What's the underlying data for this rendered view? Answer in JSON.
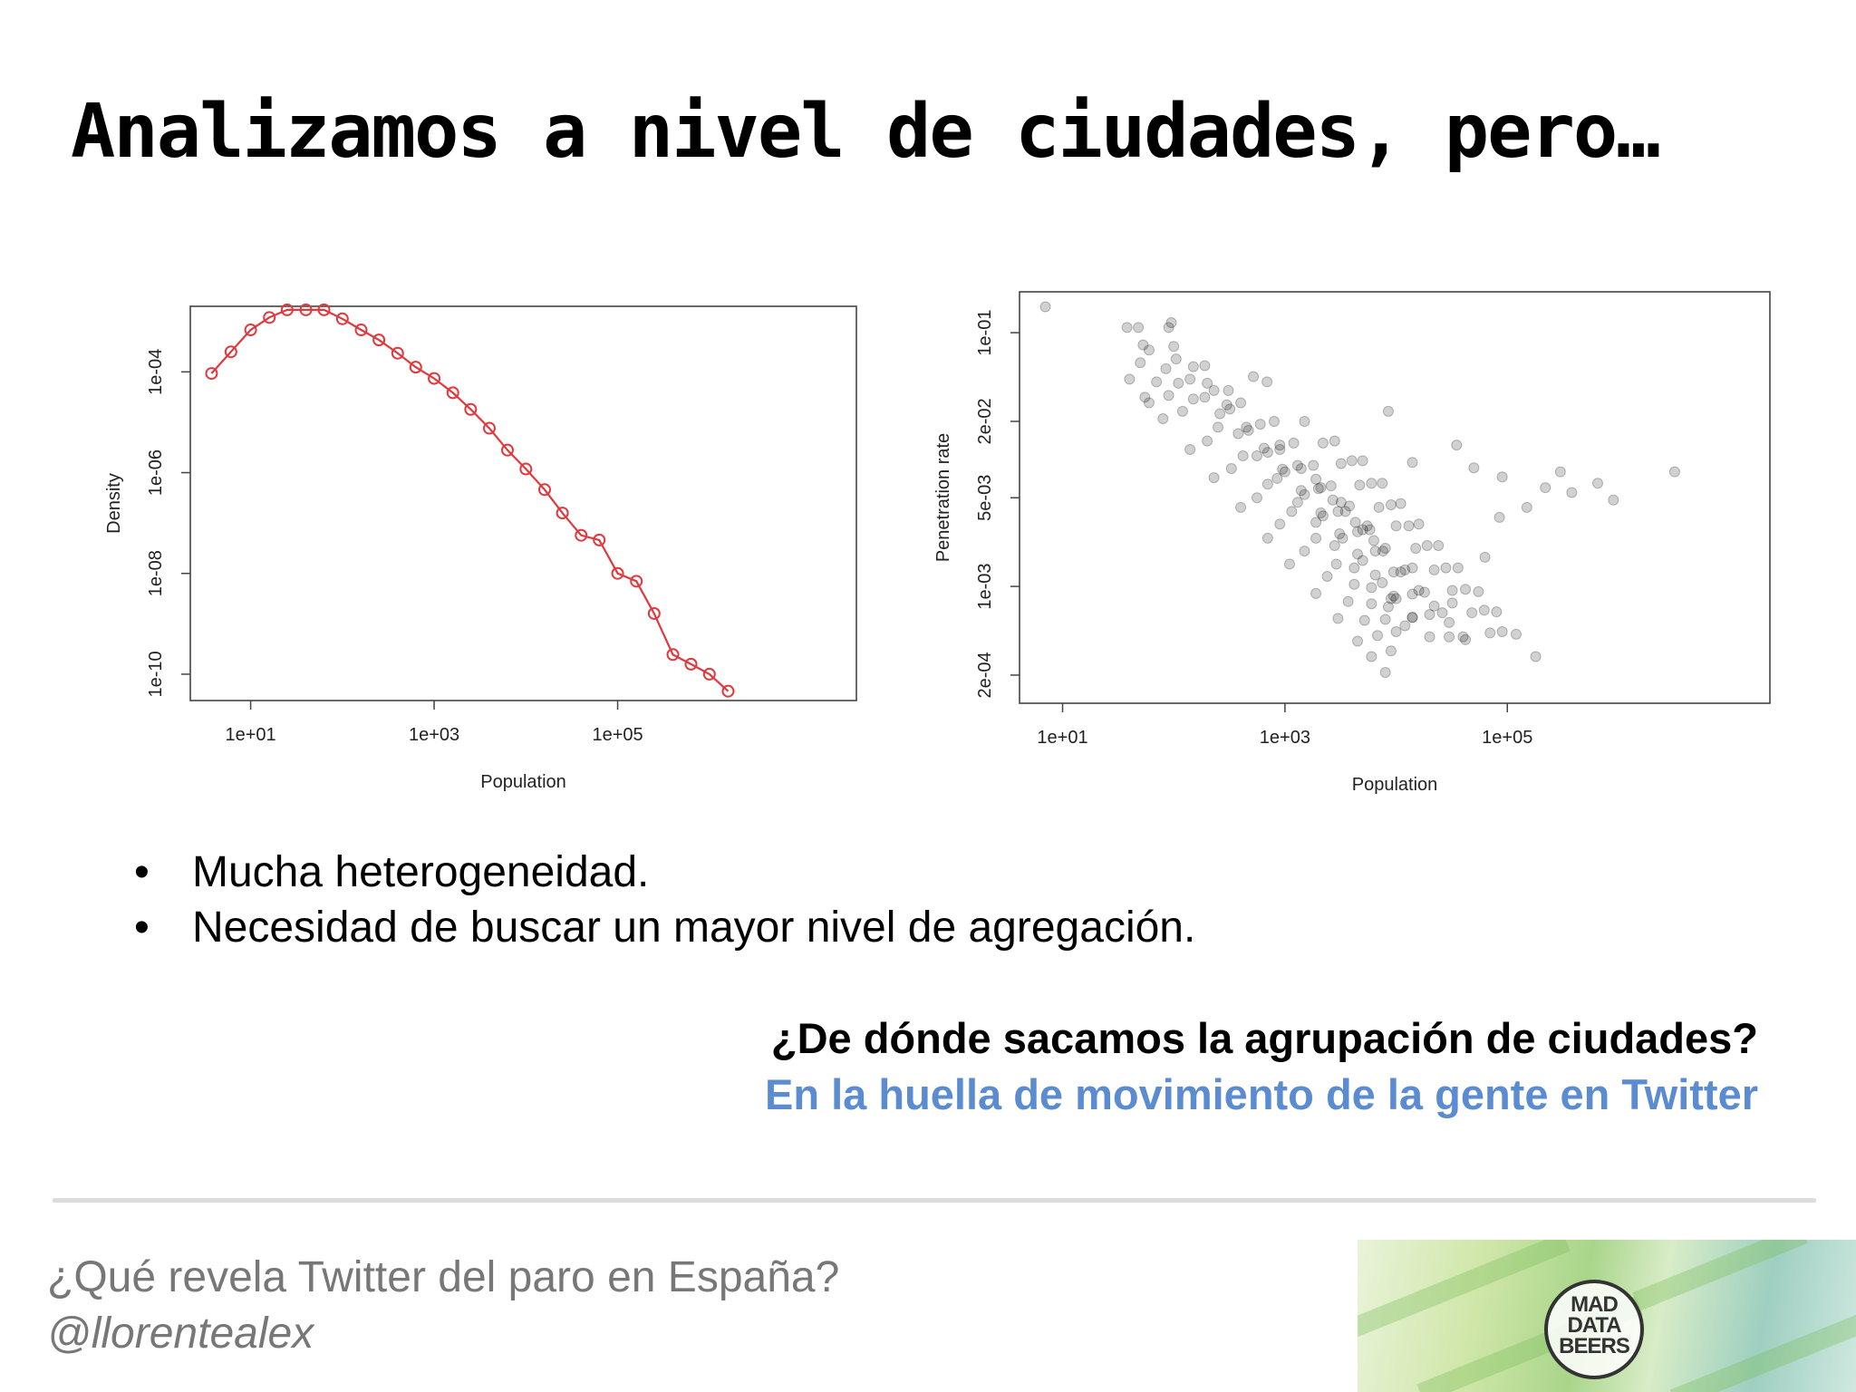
{
  "slide": {
    "title": "Analizamos a nivel de ciudades, pero…",
    "bullets": [
      "Mucha heterogeneidad.",
      "Necesidad de buscar un mayor nivel de agregación."
    ],
    "bullet_glyph": "•",
    "question": "¿De dónde sacamos la agrupación de ciudades?",
    "answer": "En la huella de movimiento de la gente en Twitter",
    "answer_color": "#5b8bd0"
  },
  "footer": {
    "title": "¿Qué revela Twitter del paro en España?",
    "handle": "@llorentealex",
    "logo_lines": [
      "MAD",
      "DATA",
      "BEERS"
    ]
  },
  "chart_data": [
    {
      "type": "line",
      "xlabel": "Population",
      "ylabel": "Density",
      "x_scale": "log10",
      "y_scale": "log10",
      "xticks": [
        {
          "value": 10,
          "label": "1e+01"
        },
        {
          "value": 1000,
          "label": "1e+03"
        },
        {
          "value": 100000,
          "label": "1e+05"
        }
      ],
      "yticks": [
        {
          "value": 1e-10,
          "label": "1e-10"
        },
        {
          "value": 1e-08,
          "label": "1e-08"
        },
        {
          "value": 1e-06,
          "label": "1e-06"
        },
        {
          "value": 0.0001,
          "label": "1e-04"
        }
      ],
      "xlim": [
        2.2,
        40000000
      ],
      "ylim": [
        3e-11,
        0.002
      ],
      "color": "#e0393e",
      "x": [
        3.75,
        6.1,
        10,
        16,
        25,
        40,
        63,
        100,
        160,
        250,
        400,
        630,
        1000,
        1600,
        2500,
        4000,
        6300,
        10000,
        16000,
        25000,
        40000,
        63000,
        100000,
        160000,
        250000,
        400000,
        630000,
        1000000,
        1600000
      ],
      "y": [
        9.3e-05,
        0.00025,
        0.00068,
        0.0012,
        0.0017,
        0.0017,
        0.0017,
        0.00113,
        0.00068,
        0.00043,
        0.000235,
        0.000124,
        7.4e-05,
        3.85e-05,
        1.8e-05,
        7.6e-06,
        2.8e-06,
        1.18e-06,
        4.6e-07,
        1.58e-07,
        5.7e-08,
        4.6e-08,
        1e-08,
        7e-09,
        1.6e-09,
        2.45e-10,
        1.58e-10,
        1e-10,
        4.6e-11
      ]
    },
    {
      "type": "scatter",
      "xlabel": "Population",
      "ylabel": "Penetration rate",
      "x_scale": "log10",
      "y_scale": "log10",
      "xticks": [
        {
          "value": 10,
          "label": "1e+01"
        },
        {
          "value": 1000,
          "label": "1e+03"
        },
        {
          "value": 100000,
          "label": "1e+05"
        }
      ],
      "yticks": [
        {
          "value": 0.0002,
          "label": "2e-04"
        },
        {
          "value": 0.001,
          "label": "1e-03"
        },
        {
          "value": 0.005,
          "label": "5e-03"
        },
        {
          "value": 0.02,
          "label": "2e-02"
        },
        {
          "value": 0.1,
          "label": "1e-01"
        }
      ],
      "xlim": [
        4.1,
        23000000
      ],
      "ylim": [
        0.00012,
        0.21
      ],
      "point_color": "#000000",
      "point_opacity": 0.18,
      "x": [
        7.0,
        38,
        48,
        53,
        90,
        95,
        100,
        105,
        190,
        310,
        520,
        690,
        8500,
        14000,
        35000,
        50000,
        90000,
        300000,
        3200000,
        9000,
        63000,
        40,
        55,
        60,
        80,
        140,
        230,
        400,
        700,
        1100,
        1900,
        3000,
        4500,
        6000,
        8000,
        50,
        70,
        90,
        120,
        200,
        330,
        560,
        900,
        1500,
        2400,
        3700,
        5200,
        6800,
        9000,
        60,
        85,
        110,
        150,
        250,
        420,
        700,
        1150,
        1900,
        2900,
        4200,
        6000,
        8000,
        10000,
        140,
        190,
        260,
        380,
        560,
        850,
        1300,
        1900,
        2800,
        4200,
        6000,
        8500,
        12000,
        150,
        230,
        320,
        470,
        700,
        1000,
        1500,
        2200,
        3300,
        5000,
        7500,
        10000,
        14000,
        200,
        300,
        450,
        650,
        950,
        1400,
        2100,
        3100,
        4500,
        6500,
        9500,
        14000,
        20000,
        400,
        600,
        900,
        1300,
        2000,
        3000,
        4500,
        6500,
        9500,
        14000,
        20000,
        30000,
        800,
        1200,
        1800,
        2600,
        3800,
        5500,
        8000,
        12000,
        18000,
        26000,
        40000,
        1500,
        2200,
        3200,
        4700,
        7000,
        10000,
        15000,
        22000,
        32000,
        48000,
        70000,
        2800,
        4000,
        6000,
        9000,
        13000,
        19000,
        28000,
        42000,
        62000,
        90000,
        5000,
        7500,
        11000,
        16000,
        24000,
        36000,
        55000,
        80000,
        120000,
        180000,
        900,
        1400,
        2100,
        2700,
        3500,
        4300,
        5000,
        6300,
        7600,
        11000,
        16000,
        22000,
        30000,
        42000,
        1900,
        3200,
        5800,
        14000,
        32000,
        85000,
        150000,
        220000,
        380000,
        650000,
        900000
      ],
      "y": [
        0.16,
        0.11,
        0.11,
        0.08,
        0.11,
        0.12,
        0.078,
        0.062,
        0.055,
        0.035,
        0.045,
        0.041,
        0.024,
        0.0095,
        0.013,
        0.0086,
        0.0073,
        0.008,
        0.008,
        0.0008,
        0.0017,
        0.043,
        0.031,
        0.028,
        0.021,
        0.012,
        0.0072,
        0.0042,
        0.0024,
        0.0015,
        0.00088,
        0.00056,
        0.00037,
        0.00028,
        0.00021,
        0.058,
        0.041,
        0.032,
        0.024,
        0.014,
        0.0085,
        0.005,
        0.0031,
        0.0019,
        0.0012,
        0.00076,
        0.00054,
        0.00041,
        0.00031,
        0.073,
        0.052,
        0.04,
        0.03,
        0.018,
        0.0107,
        0.0064,
        0.0039,
        0.0024,
        0.0015,
        0.00104,
        0.00073,
        0.00055,
        0.00044,
        0.043,
        0.031,
        0.023,
        0.016,
        0.0107,
        0.0071,
        0.0046,
        0.0032,
        0.0021,
        0.0014,
        0.00098,
        0.00069,
        0.00049,
        0.054,
        0.035,
        0.025,
        0.017,
        0.0114,
        0.008,
        0.0053,
        0.0036,
        0.0024,
        0.0016,
        0.00107,
        0.0008,
        0.00057,
        0.04,
        0.027,
        0.018,
        0.0123,
        0.0084,
        0.0057,
        0.0038,
        0.0026,
        0.0018,
        0.00123,
        0.00084,
        0.00057,
        0.0004,
        0.028,
        0.019,
        0.013,
        0.009,
        0.0059,
        0.0039,
        0.0027,
        0.0019,
        0.0013,
        0.00087,
        0.0006,
        0.0004,
        0.02,
        0.0135,
        0.009,
        0.0062,
        0.0043,
        0.003,
        0.002,
        0.00135,
        0.0009,
        0.00062,
        0.0004,
        0.02,
        0.0135,
        0.0093,
        0.0063,
        0.0042,
        0.003,
        0.002,
        0.00135,
        0.00093,
        0.00062,
        0.00043,
        0.014,
        0.0098,
        0.0065,
        0.0044,
        0.003,
        0.0021,
        0.0014,
        0.00095,
        0.00065,
        0.00044,
        0.0098,
        0.0065,
        0.0045,
        0.0031,
        0.0021,
        0.0014,
        0.00091,
        0.00063,
        0.00042,
        0.00028,
        0.012,
        0.0085,
        0.006,
        0.0048,
        0.0039,
        0.0032,
        0.0028,
        0.0023,
        0.0019,
        0.0013,
        0.00093,
        0.0007,
        0.00052,
        0.00038,
        0.007,
        0.0046,
        0.0028,
        0.0014,
        0.00074,
        0.0035,
        0.0042,
        0.006,
        0.0055,
        0.0065,
        0.0048
      ]
    }
  ]
}
